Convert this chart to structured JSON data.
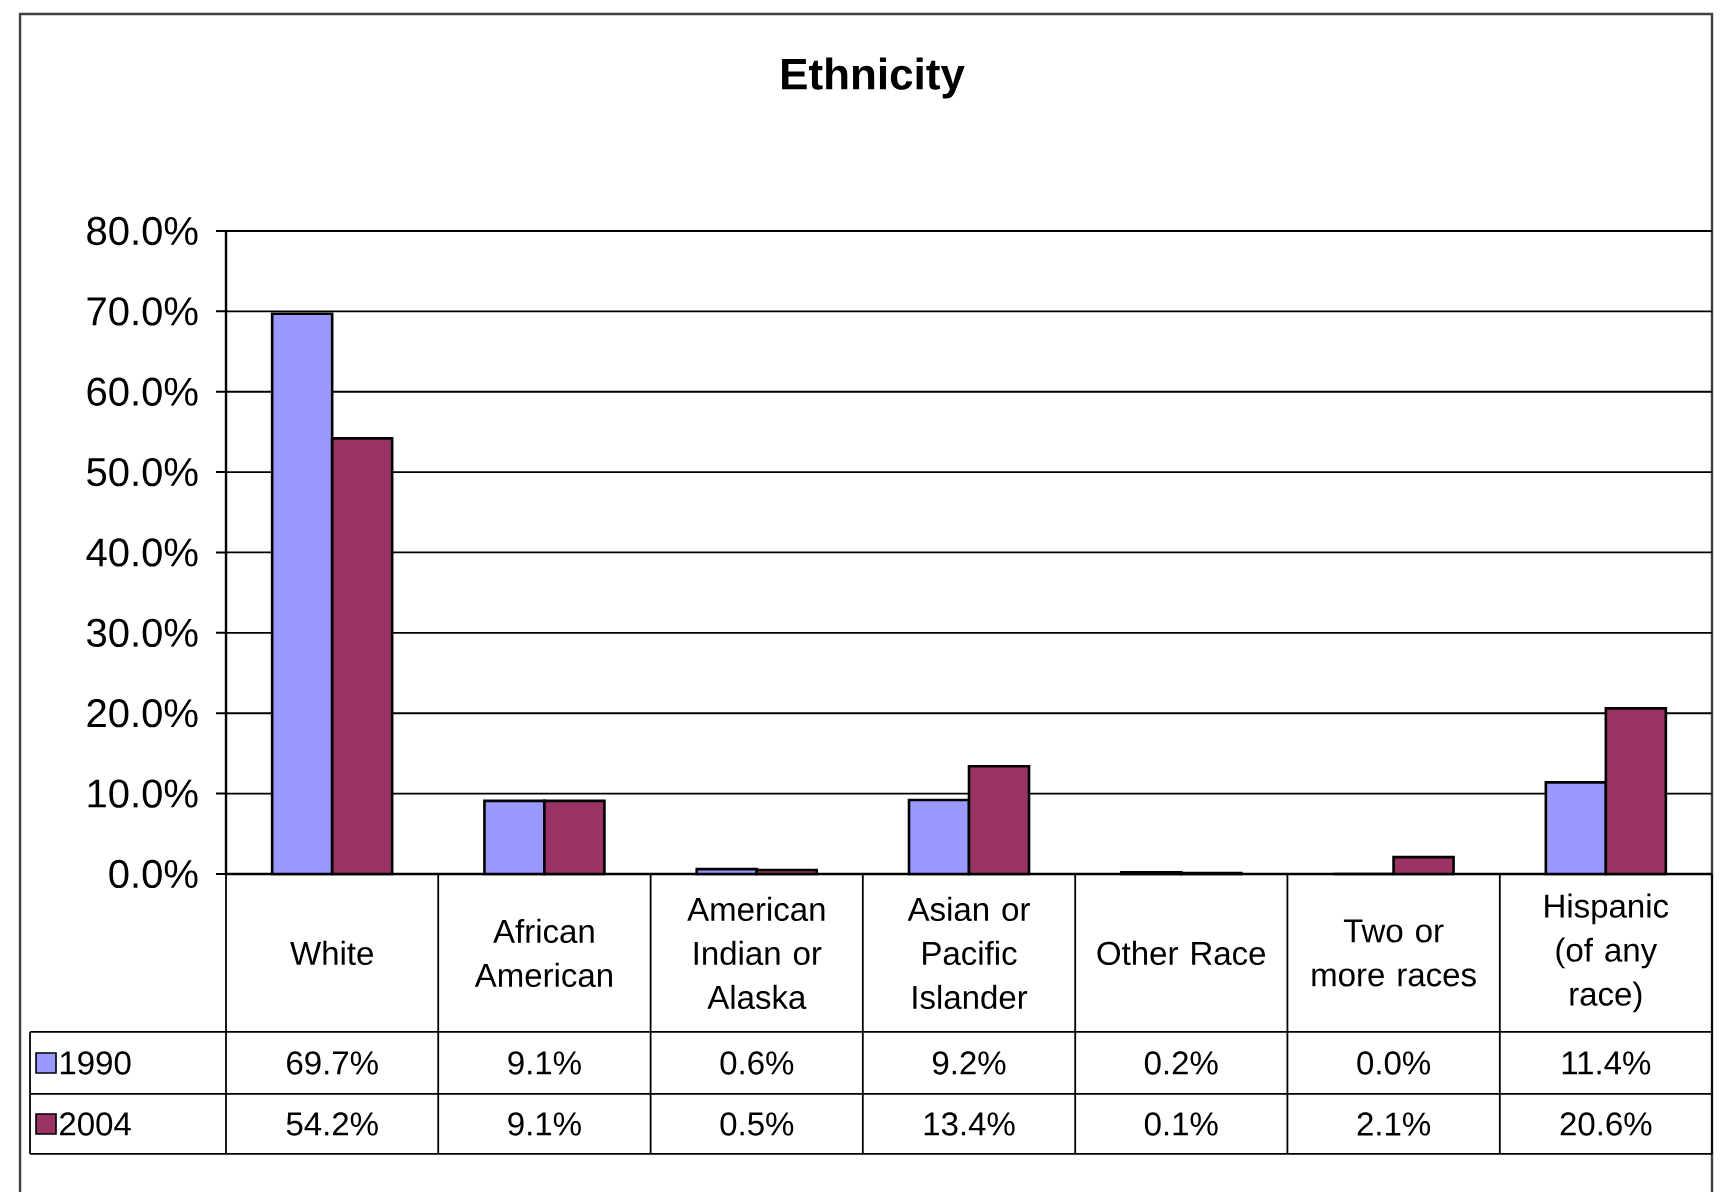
{
  "chart_data": {
    "type": "bar",
    "title": "Ethnicity",
    "categories": [
      "White",
      "African American",
      "American Indian or Alaska",
      "Asian or Pacific Islander",
      "Other Race",
      "Two or more races",
      "Hispanic (of any race)"
    ],
    "series": [
      {
        "name": "1990",
        "color": "#9999ff",
        "values": [
          69.7,
          9.1,
          0.6,
          9.2,
          0.2,
          0.0,
          11.4
        ],
        "value_labels": [
          "69.7%",
          "9.1%",
          "0.6%",
          "9.2%",
          "0.2%",
          "0.0%",
          "11.4%"
        ]
      },
      {
        "name": "2004",
        "color": "#993366",
        "values": [
          54.2,
          9.1,
          0.5,
          13.4,
          0.1,
          2.1,
          20.6
        ],
        "value_labels": [
          "54.2%",
          "9.1%",
          "0.5%",
          "13.4%",
          "0.1%",
          "2.1%",
          "20.6%"
        ]
      }
    ],
    "ylim": [
      0,
      80
    ],
    "yticks": [
      {
        "value": 0,
        "label": "0.0%"
      },
      {
        "value": 10,
        "label": "10.0%"
      },
      {
        "value": 20,
        "label": "20.0%"
      },
      {
        "value": 30,
        "label": "30.0%"
      },
      {
        "value": 40,
        "label": "40.0%"
      },
      {
        "value": 50,
        "label": "50.0%"
      },
      {
        "value": 60,
        "label": "60.0%"
      },
      {
        "value": 70,
        "label": "70.0%"
      },
      {
        "value": 80,
        "label": "80.0%"
      }
    ],
    "grid": "y",
    "legend": "bottom"
  }
}
